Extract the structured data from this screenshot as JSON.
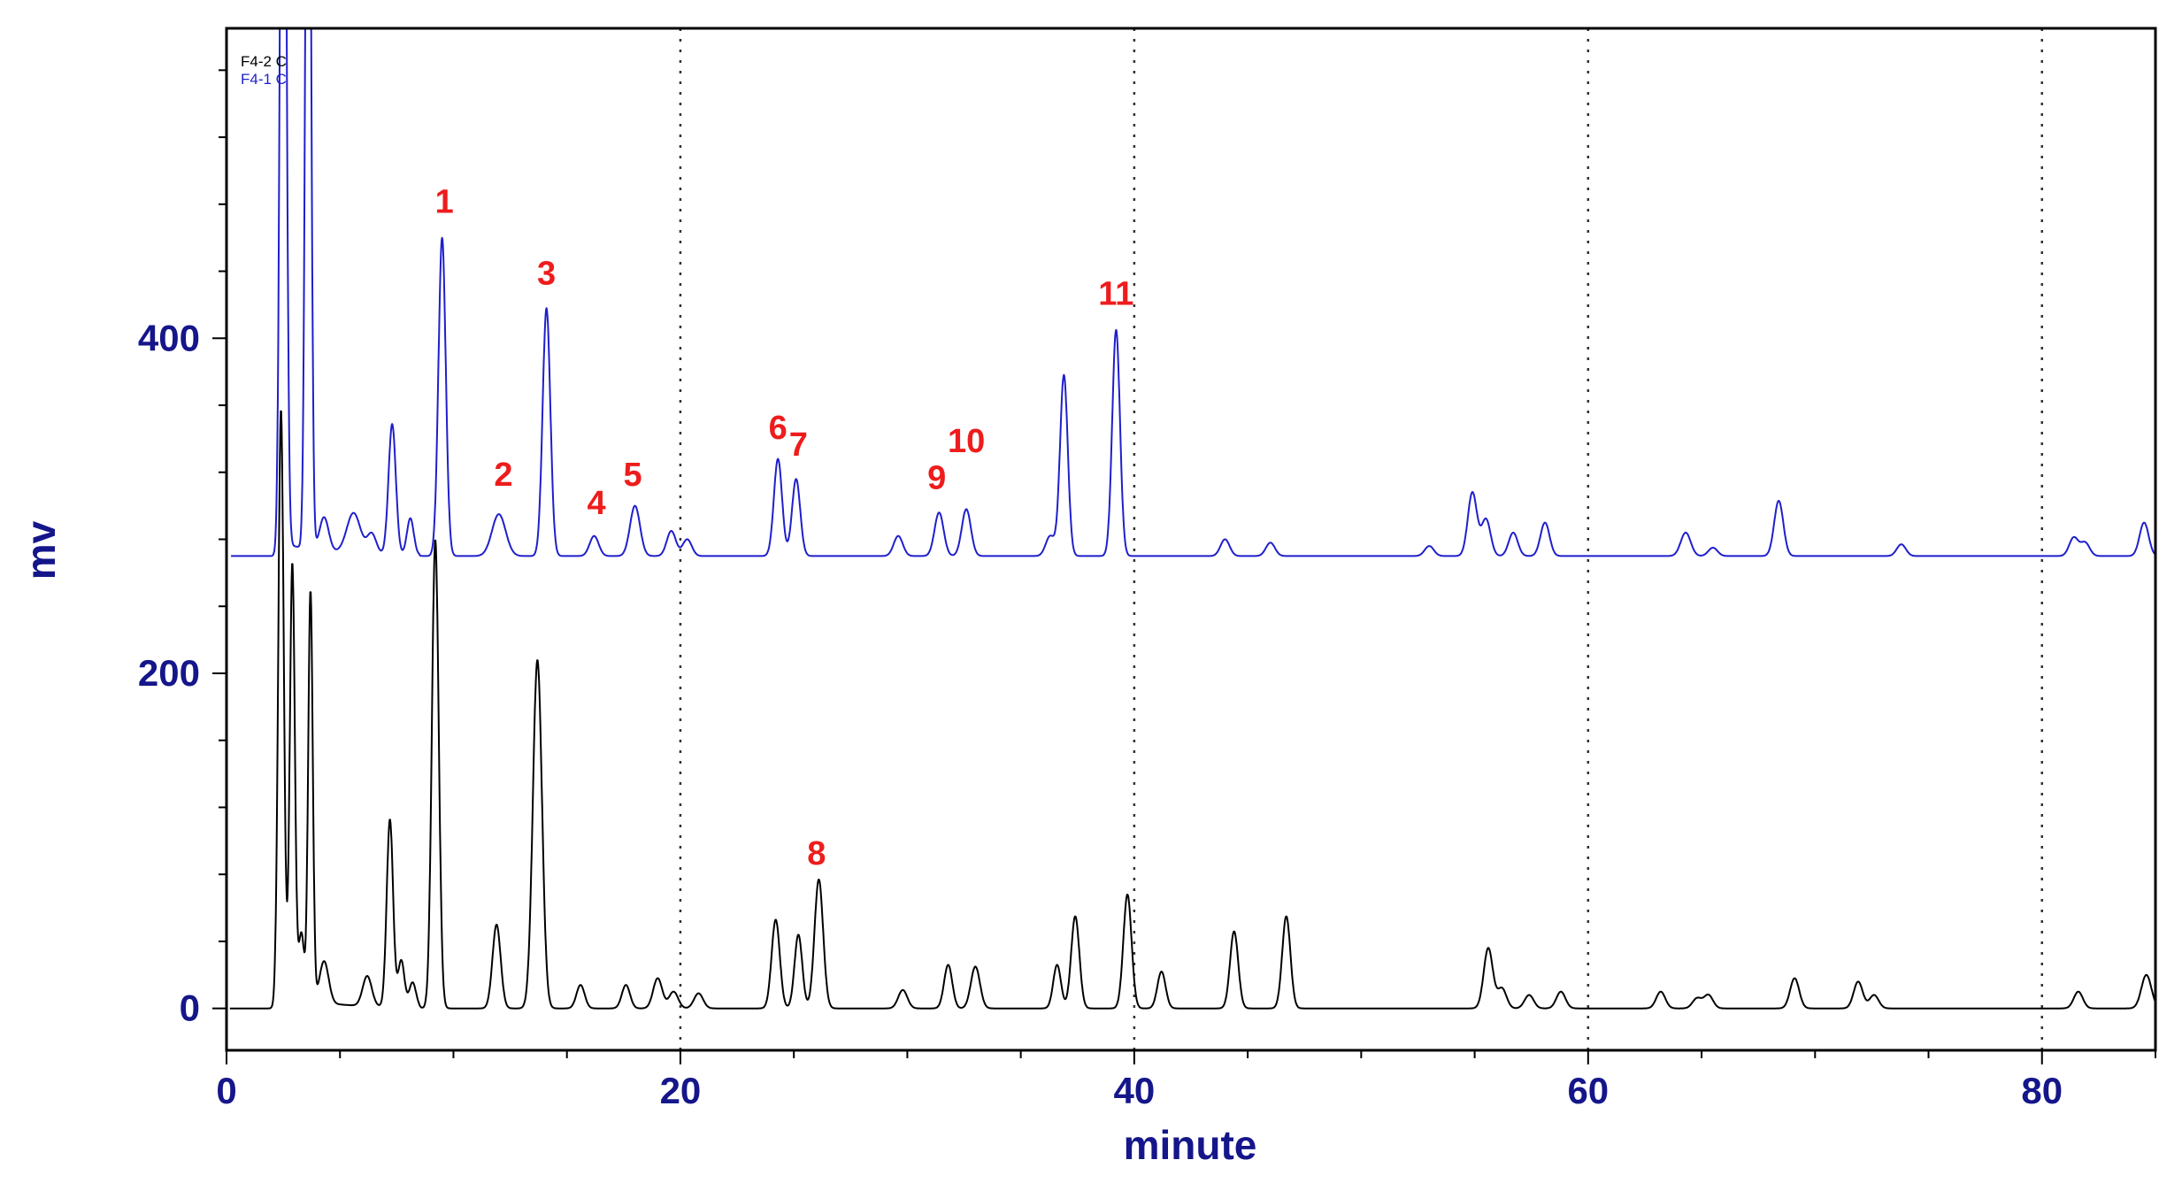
{
  "chart_data": {
    "type": "line",
    "title": "",
    "xlabel": "minute",
    "ylabel": "mv",
    "xlim": [
      0,
      85
    ],
    "ylim": [
      -25,
      585
    ],
    "xticks": [
      0,
      20,
      40,
      60,
      80
    ],
    "yticks": [
      0,
      200,
      400
    ],
    "grid": {
      "x": "dotted-vertical",
      "y": false
    },
    "legend": {
      "placement": "top-left",
      "entries": [
        {
          "text": "F4-2 C",
          "color": "#000000"
        },
        {
          "text": "F4-1 C",
          "color": "#1f1fcc"
        }
      ]
    },
    "series": [
      {
        "name": "F4-1 C",
        "color": "#1f1fcc",
        "baseline": 270,
        "peaks": [
          [
            2.5,
            700,
            0.12
          ],
          [
            3.6,
            640,
            0.11
          ],
          [
            4.3,
            20,
            0.2
          ],
          [
            5.6,
            24,
            0.3
          ],
          [
            6.4,
            12,
            0.2
          ],
          [
            7.3,
            78,
            0.16
          ],
          [
            8.1,
            22,
            0.15
          ],
          [
            9.5,
            190,
            0.16
          ],
          [
            12.0,
            25,
            0.3
          ],
          [
            14.1,
            148,
            0.17
          ],
          [
            16.2,
            12,
            0.2
          ],
          [
            18.0,
            30,
            0.22
          ],
          [
            19.6,
            15,
            0.2
          ],
          [
            20.3,
            10,
            0.2
          ],
          [
            24.3,
            58,
            0.18
          ],
          [
            25.1,
            46,
            0.18
          ],
          [
            29.6,
            12,
            0.2
          ],
          [
            31.4,
            26,
            0.2
          ],
          [
            32.6,
            28,
            0.2
          ],
          [
            36.3,
            12,
            0.2
          ],
          [
            36.9,
            108,
            0.17
          ],
          [
            39.2,
            135,
            0.17
          ],
          [
            44.0,
            10,
            0.2
          ],
          [
            46.0,
            8,
            0.2
          ],
          [
            53.0,
            6,
            0.2
          ],
          [
            54.9,
            38,
            0.2
          ],
          [
            55.5,
            22,
            0.2
          ],
          [
            56.7,
            14,
            0.2
          ],
          [
            58.1,
            20,
            0.2
          ],
          [
            64.3,
            14,
            0.22
          ],
          [
            65.5,
            5,
            0.2
          ],
          [
            68.4,
            33,
            0.2
          ],
          [
            73.8,
            7,
            0.2
          ],
          [
            81.4,
            11,
            0.2
          ],
          [
            81.9,
            8,
            0.2
          ],
          [
            84.5,
            20,
            0.2
          ]
        ]
      },
      {
        "name": "F4-2 C",
        "color": "#000000",
        "baseline": 0,
        "peaks": [
          [
            2.4,
            350,
            0.12
          ],
          [
            2.9,
            260,
            0.11
          ],
          [
            3.3,
            40,
            0.12
          ],
          [
            3.7,
            245,
            0.1
          ],
          [
            4.3,
            25,
            0.2
          ],
          [
            6.2,
            18,
            0.2
          ],
          [
            7.2,
            112,
            0.14
          ],
          [
            7.7,
            28,
            0.14
          ],
          [
            8.2,
            15,
            0.15
          ],
          [
            9.2,
            280,
            0.15
          ],
          [
            11.9,
            50,
            0.18
          ],
          [
            13.7,
            208,
            0.2
          ],
          [
            15.6,
            14,
            0.18
          ],
          [
            17.6,
            14,
            0.18
          ],
          [
            19.0,
            18,
            0.2
          ],
          [
            19.7,
            10,
            0.2
          ],
          [
            20.8,
            9,
            0.2
          ],
          [
            24.2,
            53,
            0.18
          ],
          [
            25.2,
            44,
            0.17
          ],
          [
            26.1,
            77,
            0.19
          ],
          [
            29.8,
            11,
            0.2
          ],
          [
            31.8,
            26,
            0.18
          ],
          [
            33.0,
            25,
            0.2
          ],
          [
            36.6,
            26,
            0.17
          ],
          [
            37.4,
            55,
            0.18
          ],
          [
            39.7,
            68,
            0.18
          ],
          [
            41.2,
            22,
            0.18
          ],
          [
            44.4,
            46,
            0.18
          ],
          [
            46.7,
            55,
            0.18
          ],
          [
            55.6,
            36,
            0.2
          ],
          [
            56.2,
            12,
            0.2
          ],
          [
            57.4,
            8,
            0.2
          ],
          [
            58.8,
            10,
            0.2
          ],
          [
            63.2,
            10,
            0.2
          ],
          [
            64.8,
            6,
            0.2
          ],
          [
            65.3,
            8,
            0.2
          ],
          [
            69.1,
            18,
            0.2
          ],
          [
            71.9,
            16,
            0.2
          ],
          [
            72.6,
            8,
            0.2
          ],
          [
            81.6,
            10,
            0.2
          ],
          [
            84.6,
            20,
            0.22
          ]
        ]
      }
    ],
    "annotations": [
      {
        "text": "1",
        "x": 9.6,
        "y": 475,
        "color": "#ee1c1c"
      },
      {
        "text": "2",
        "x": 12.2,
        "y": 312,
        "color": "#ee1c1c"
      },
      {
        "text": "3",
        "x": 14.1,
        "y": 432,
        "color": "#ee1c1c"
      },
      {
        "text": "4",
        "x": 16.3,
        "y": 295,
        "color": "#ee1c1c"
      },
      {
        "text": "5",
        "x": 17.9,
        "y": 312,
        "color": "#ee1c1c"
      },
      {
        "text": "6",
        "x": 24.3,
        "y": 340,
        "color": "#ee1c1c"
      },
      {
        "text": "7",
        "x": 25.2,
        "y": 330,
        "color": "#ee1c1c"
      },
      {
        "text": "8",
        "x": 26.0,
        "y": 86,
        "color": "#ee1c1c"
      },
      {
        "text": "9",
        "x": 31.3,
        "y": 310,
        "color": "#ee1c1c"
      },
      {
        "text": "10",
        "x": 32.6,
        "y": 332,
        "color": "#ee1c1c"
      },
      {
        "text": "11",
        "x": 39.2,
        "y": 420,
        "color": "#ee1c1c"
      }
    ]
  }
}
